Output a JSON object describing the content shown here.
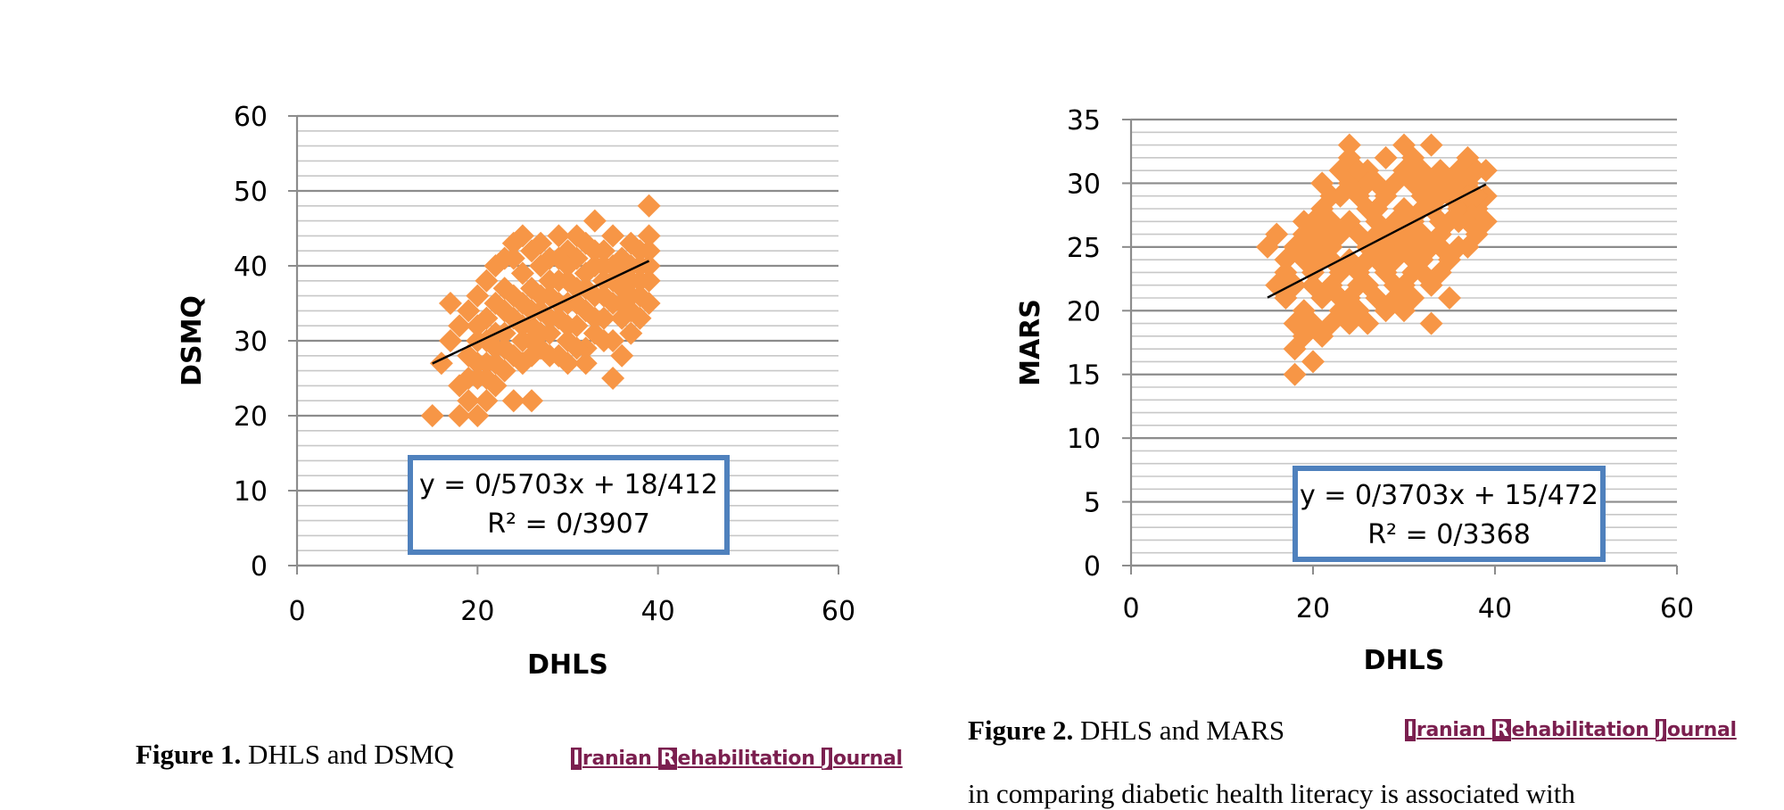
{
  "chart_data": [
    {
      "type": "scatter",
      "title": "",
      "xlabel": "DHLS",
      "ylabel": "DSMQ",
      "xlim": [
        0,
        60
      ],
      "ylim": [
        0,
        60
      ],
      "xticks": [
        0,
        20,
        40,
        60
      ],
      "yticks": [
        0,
        10,
        20,
        30,
        40,
        50,
        60
      ],
      "minor_gridline_step": 2,
      "marker_color": "#f79646",
      "grid": true,
      "series": [
        {
          "name": "DSMQ",
          "points": [
            [
              15,
              20
            ],
            [
              17,
              35
            ],
            [
              18,
              20
            ],
            [
              18,
              24
            ],
            [
              19,
              22
            ],
            [
              19,
              28
            ],
            [
              20,
              20
            ],
            [
              20,
              25
            ],
            [
              20,
              30
            ],
            [
              21,
              22
            ],
            [
              21,
              27
            ],
            [
              21,
              33
            ],
            [
              22,
              24
            ],
            [
              22,
              29
            ],
            [
              22,
              35
            ],
            [
              23,
              26
            ],
            [
              23,
              31
            ],
            [
              23,
              37
            ],
            [
              24,
              22
            ],
            [
              24,
              28
            ],
            [
              24,
              33
            ],
            [
              24,
              41
            ],
            [
              25,
              30
            ],
            [
              25,
              35
            ],
            [
              25,
              39
            ],
            [
              26,
              22
            ],
            [
              26,
              28
            ],
            [
              26,
              32
            ],
            [
              26,
              37
            ],
            [
              26,
              42
            ],
            [
              27,
              29
            ],
            [
              27,
              34
            ],
            [
              27,
              40
            ],
            [
              28,
              31
            ],
            [
              28,
              36
            ],
            [
              28,
              41
            ],
            [
              29,
              28
            ],
            [
              29,
              33
            ],
            [
              29,
              38
            ],
            [
              29,
              44
            ],
            [
              30,
              30
            ],
            [
              30,
              35
            ],
            [
              30,
              40
            ],
            [
              30,
              42
            ],
            [
              31,
              32
            ],
            [
              31,
              37
            ],
            [
              31,
              41
            ],
            [
              32,
              29
            ],
            [
              32,
              34
            ],
            [
              32,
              39
            ],
            [
              32,
              43
            ],
            [
              33,
              31
            ],
            [
              33,
              36
            ],
            [
              33,
              40
            ],
            [
              33,
              46
            ],
            [
              34,
              33
            ],
            [
              34,
              38
            ],
            [
              34,
              42
            ],
            [
              35,
              25
            ],
            [
              35,
              30
            ],
            [
              35,
              35
            ],
            [
              35,
              40
            ],
            [
              35,
              44
            ],
            [
              36,
              28
            ],
            [
              36,
              33
            ],
            [
              36,
              37
            ],
            [
              36,
              41
            ],
            [
              37,
              31
            ],
            [
              37,
              36
            ],
            [
              37,
              40
            ],
            [
              37,
              43
            ],
            [
              38,
              33
            ],
            [
              38,
              38
            ],
            [
              38,
              42
            ],
            [
              39,
              35
            ],
            [
              39,
              40
            ],
            [
              39,
              44
            ],
            [
              39,
              48
            ],
            [
              16,
              27
            ],
            [
              17,
              30
            ],
            [
              18,
              32
            ],
            [
              19,
              34
            ],
            [
              20,
              36
            ],
            [
              21,
              38
            ],
            [
              22,
              40
            ],
            [
              23,
              41
            ],
            [
              24,
              43
            ],
            [
              25,
              44
            ],
            [
              27,
              43
            ],
            [
              28,
              38
            ],
            [
              29,
              35
            ],
            [
              30,
              32
            ],
            [
              31,
              29
            ],
            [
              32,
              27
            ],
            [
              33,
              33
            ],
            [
              34,
              36
            ],
            [
              36,
              39
            ],
            [
              37,
              34
            ],
            [
              38,
              36
            ],
            [
              39,
              38
            ],
            [
              22,
              31
            ],
            [
              23,
              34
            ],
            [
              24,
              36
            ],
            [
              25,
              32
            ],
            [
              26,
              34
            ],
            [
              27,
              31
            ],
            [
              28,
              33
            ],
            [
              29,
              41
            ],
            [
              30,
              38
            ],
            [
              31,
              35
            ],
            [
              32,
              37
            ],
            [
              33,
              42
            ],
            [
              34,
              40
            ],
            [
              35,
              38
            ],
            [
              36,
              35
            ],
            [
              37,
              38
            ],
            [
              38,
              40
            ],
            [
              39,
              42
            ],
            [
              20,
              32
            ],
            [
              21,
              30
            ],
            [
              22,
              27
            ],
            [
              23,
              29
            ],
            [
              19,
              25
            ],
            [
              20,
              27
            ],
            [
              21,
              25
            ],
            [
              25,
              27
            ],
            [
              26,
              30
            ],
            [
              27,
              36
            ],
            [
              28,
              28
            ],
            [
              30,
              27
            ],
            [
              31,
              44
            ],
            [
              34,
              30
            ]
          ]
        }
      ],
      "trendline": {
        "equation": "y = 0/5703x + 18/412",
        "r2": "R² = 0/3907",
        "slope": 0.5703,
        "intercept": 18.412,
        "x_range": [
          15,
          39
        ]
      }
    },
    {
      "type": "scatter",
      "title": "",
      "xlabel": "DHLS",
      "ylabel": "MARS",
      "xlim": [
        0,
        60
      ],
      "ylim": [
        0,
        35
      ],
      "xticks": [
        0,
        20,
        40,
        60
      ],
      "yticks": [
        0,
        5,
        10,
        15,
        20,
        25,
        30,
        35
      ],
      "minor_gridline_step": 1,
      "marker_color": "#f79646",
      "grid": true,
      "series": [
        {
          "name": "MARS",
          "points": [
            [
              15,
              25
            ],
            [
              16,
              26
            ],
            [
              17,
              21
            ],
            [
              17,
              23
            ],
            [
              18,
              15
            ],
            [
              18,
              17
            ],
            [
              18,
              19
            ],
            [
              18,
              22
            ],
            [
              18,
              25
            ],
            [
              19,
              18
            ],
            [
              19,
              20
            ],
            [
              19,
              24
            ],
            [
              19,
              27
            ],
            [
              20,
              16
            ],
            [
              20,
              19
            ],
            [
              20,
              22
            ],
            [
              20,
              25
            ],
            [
              20,
              27
            ],
            [
              21,
              18
            ],
            [
              21,
              21
            ],
            [
              21,
              24
            ],
            [
              21,
              28
            ],
            [
              21,
              30
            ],
            [
              22,
              19
            ],
            [
              22,
              22
            ],
            [
              22,
              25
            ],
            [
              22,
              27
            ],
            [
              23,
              20
            ],
            [
              23,
              23
            ],
            [
              23,
              26
            ],
            [
              23,
              29
            ],
            [
              24,
              19
            ],
            [
              24,
              21
            ],
            [
              24,
              24
            ],
            [
              24,
              27
            ],
            [
              24,
              30
            ],
            [
              24,
              32
            ],
            [
              24,
              33
            ],
            [
              25,
              20
            ],
            [
              25,
              23
            ],
            [
              25,
              26
            ],
            [
              25,
              29
            ],
            [
              26,
              19
            ],
            [
              26,
              22
            ],
            [
              26,
              25
            ],
            [
              26,
              28
            ],
            [
              26,
              31
            ],
            [
              27,
              21
            ],
            [
              27,
              24
            ],
            [
              27,
              27
            ],
            [
              27,
              30
            ],
            [
              28,
              20
            ],
            [
              28,
              23
            ],
            [
              28,
              26
            ],
            [
              28,
              29
            ],
            [
              28,
              32
            ],
            [
              29,
              21
            ],
            [
              29,
              24
            ],
            [
              29,
              27
            ],
            [
              29,
              30
            ],
            [
              30,
              22
            ],
            [
              30,
              25
            ],
            [
              30,
              28
            ],
            [
              30,
              31
            ],
            [
              30,
              33
            ],
            [
              31,
              21
            ],
            [
              31,
              24
            ],
            [
              31,
              27
            ],
            [
              31,
              30
            ],
            [
              31,
              32
            ],
            [
              32,
              23
            ],
            [
              32,
              26
            ],
            [
              32,
              29
            ],
            [
              32,
              31
            ],
            [
              33,
              19
            ],
            [
              33,
              22
            ],
            [
              33,
              25
            ],
            [
              33,
              28
            ],
            [
              33,
              33
            ],
            [
              34,
              23
            ],
            [
              34,
              26
            ],
            [
              34,
              29
            ],
            [
              34,
              31
            ],
            [
              35,
              21
            ],
            [
              35,
              24
            ],
            [
              35,
              27
            ],
            [
              35,
              30
            ],
            [
              36,
              25
            ],
            [
              36,
              28
            ],
            [
              36,
              31
            ],
            [
              37,
              25
            ],
            [
              37,
              27
            ],
            [
              37,
              30
            ],
            [
              37,
              32
            ],
            [
              38,
              26
            ],
            [
              38,
              28
            ],
            [
              38,
              31
            ],
            [
              39,
              27
            ],
            [
              39,
              29
            ],
            [
              39,
              31
            ],
            [
              16,
              22
            ],
            [
              17,
              24
            ],
            [
              19,
              26
            ],
            [
              20,
              23
            ],
            [
              21,
              26
            ],
            [
              22,
              29
            ],
            [
              23,
              31
            ],
            [
              25,
              31
            ],
            [
              26,
              30
            ],
            [
              27,
              28
            ],
            [
              28,
              25
            ],
            [
              29,
              22
            ],
            [
              30,
              20
            ],
            [
              31,
              23
            ],
            [
              32,
              28
            ],
            [
              33,
              30
            ],
            [
              34,
              27
            ],
            [
              35,
              29
            ],
            [
              36,
              27
            ],
            [
              37,
              29
            ],
            [
              38,
              29
            ],
            [
              22,
              24
            ],
            [
              23,
              21
            ],
            [
              25,
              22
            ],
            [
              26,
              24
            ],
            [
              27,
              26
            ],
            [
              29,
              26
            ],
            [
              30,
              26
            ],
            [
              31,
              25
            ],
            [
              32,
              24
            ],
            [
              34,
              25
            ],
            [
              36,
              29
            ]
          ]
        }
      ],
      "trendline": {
        "equation": "y = 0/3703x + 15/472",
        "r2": "R² = 0/3368",
        "slope": 0.3703,
        "intercept": 15.472,
        "x_range": [
          15,
          39
        ]
      }
    }
  ],
  "captions": [
    {
      "label": "Figure 1.",
      "text": "DHLS and DSMQ"
    },
    {
      "label": "Figure 2.",
      "text": "DHLS and MARS"
    }
  ],
  "journal_logo": {
    "initial_1": "I",
    "rest_1": "ranian ",
    "initial_2": "R",
    "rest_2": "ehabilitation ",
    "initial_3": "J",
    "rest_3": "ournal"
  },
  "body_text_fragment": "in comparing diabetic health literacy is associated with"
}
